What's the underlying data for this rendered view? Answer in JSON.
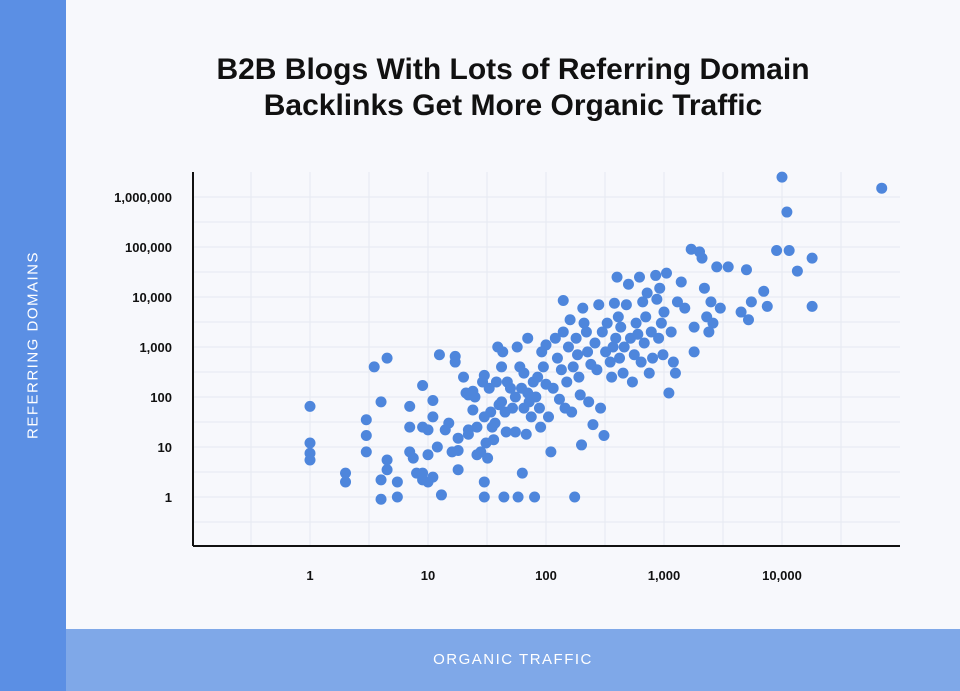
{
  "chart_data": {
    "type": "scatter",
    "title_line1": "B2B Blogs With Lots of Referring Domain",
    "title_line2": "Backlinks Get More Organic Traffic",
    "xlabel": "ORGANIC TRAFFIC",
    "ylabel": "REFERRING DOMAINS",
    "x_scale": "log",
    "y_scale": "log",
    "x_ticks": [
      1,
      10,
      100,
      1000,
      10000
    ],
    "x_tick_labels": [
      "1",
      "10",
      "100",
      "1,000",
      "10,000"
    ],
    "y_ticks": [
      1,
      10,
      100,
      1000,
      10000,
      100000,
      1000000
    ],
    "y_tick_labels": [
      "1",
      "10",
      "100",
      "1,000",
      "10,000",
      "100,000",
      "1,000,000"
    ],
    "grid": true,
    "color": "#4e86dc",
    "points": [
      [
        1,
        65
      ],
      [
        1,
        12
      ],
      [
        1,
        7.5
      ],
      [
        1,
        5.5
      ],
      [
        2,
        3
      ],
      [
        2,
        2
      ],
      [
        3,
        35
      ],
      [
        3,
        17
      ],
      [
        3,
        8
      ],
      [
        3.5,
        400
      ],
      [
        4,
        80
      ],
      [
        4,
        2.2
      ],
      [
        4,
        0.9
      ],
      [
        4.5,
        600
      ],
      [
        4.5,
        5.5
      ],
      [
        4.5,
        3.5
      ],
      [
        5.5,
        2
      ],
      [
        5.5,
        1
      ],
      [
        7,
        65
      ],
      [
        7,
        25
      ],
      [
        7,
        8
      ],
      [
        7.5,
        6
      ],
      [
        8,
        3
      ],
      [
        9,
        170
      ],
      [
        9,
        25
      ],
      [
        9,
        3
      ],
      [
        9,
        2.2
      ],
      [
        10,
        2
      ],
      [
        10,
        7
      ],
      [
        10,
        22
      ],
      [
        11,
        40
      ],
      [
        11,
        85
      ],
      [
        11,
        2.5
      ],
      [
        12,
        10
      ],
      [
        12.5,
        700
      ],
      [
        13,
        1.1
      ],
      [
        14,
        22
      ],
      [
        15,
        30
      ],
      [
        16,
        8
      ],
      [
        17,
        500
      ],
      [
        17,
        650
      ],
      [
        18,
        3.5
      ],
      [
        18,
        15
      ],
      [
        18,
        8.5
      ],
      [
        20,
        250
      ],
      [
        21,
        120
      ],
      [
        22,
        110
      ],
      [
        22,
        22
      ],
      [
        22,
        18
      ],
      [
        24,
        55
      ],
      [
        24,
        130
      ],
      [
        25,
        100
      ],
      [
        26,
        7
      ],
      [
        26,
        25
      ],
      [
        28,
        8
      ],
      [
        29,
        200
      ],
      [
        30,
        40
      ],
      [
        30,
        270
      ],
      [
        30,
        1
      ],
      [
        30,
        2
      ],
      [
        31,
        12
      ],
      [
        32,
        6
      ],
      [
        33,
        150
      ],
      [
        34,
        50
      ],
      [
        35,
        25
      ],
      [
        36,
        14
      ],
      [
        37,
        30
      ],
      [
        38,
        200
      ],
      [
        39,
        1000
      ],
      [
        40,
        70
      ],
      [
        42,
        400
      ],
      [
        42,
        80
      ],
      [
        43,
        800
      ],
      [
        44,
        1
      ],
      [
        45,
        50
      ],
      [
        46,
        20
      ],
      [
        47,
        200
      ],
      [
        50,
        150
      ],
      [
        52,
        60
      ],
      [
        55,
        20
      ],
      [
        55,
        100
      ],
      [
        57,
        1000
      ],
      [
        58,
        1
      ],
      [
        60,
        400
      ],
      [
        62,
        150
      ],
      [
        63,
        3
      ],
      [
        65,
        60
      ],
      [
        65,
        300
      ],
      [
        68,
        18
      ],
      [
        70,
        1500
      ],
      [
        70,
        120
      ],
      [
        72,
        80
      ],
      [
        75,
        40
      ],
      [
        78,
        200
      ],
      [
        80,
        1
      ],
      [
        82,
        100
      ],
      [
        85,
        250
      ],
      [
        88,
        60
      ],
      [
        90,
        25
      ],
      [
        92,
        800
      ],
      [
        95,
        400
      ],
      [
        100,
        180
      ],
      [
        100,
        1100
      ],
      [
        105,
        40
      ],
      [
        110,
        8
      ],
      [
        115,
        150
      ],
      [
        120,
        1500
      ],
      [
        125,
        600
      ],
      [
        130,
        90
      ],
      [
        135,
        350
      ],
      [
        140,
        2000
      ],
      [
        140,
        8500
      ],
      [
        145,
        60
      ],
      [
        150,
        200
      ],
      [
        155,
        1000
      ],
      [
        160,
        3500
      ],
      [
        165,
        50
      ],
      [
        170,
        400
      ],
      [
        175,
        1
      ],
      [
        180,
        1500
      ],
      [
        185,
        700
      ],
      [
        190,
        250
      ],
      [
        195,
        110
      ],
      [
        200,
        11
      ],
      [
        205,
        6000
      ],
      [
        210,
        3000
      ],
      [
        220,
        2000
      ],
      [
        225,
        800
      ],
      [
        230,
        80
      ],
      [
        240,
        450
      ],
      [
        250,
        28
      ],
      [
        260,
        1200
      ],
      [
        270,
        350
      ],
      [
        280,
        7000
      ],
      [
        290,
        60
      ],
      [
        300,
        2000
      ],
      [
        310,
        17
      ],
      [
        320,
        800
      ],
      [
        330,
        3000
      ],
      [
        350,
        500
      ],
      [
        360,
        250
      ],
      [
        370,
        1000
      ],
      [
        380,
        7500
      ],
      [
        390,
        1500
      ],
      [
        400,
        25000
      ],
      [
        410,
        4000
      ],
      [
        420,
        600
      ],
      [
        430,
        2500
      ],
      [
        450,
        300
      ],
      [
        460,
        1000
      ],
      [
        480,
        7000
      ],
      [
        500,
        18000
      ],
      [
        520,
        1500
      ],
      [
        540,
        200
      ],
      [
        560,
        700
      ],
      [
        580,
        3000
      ],
      [
        600,
        1800
      ],
      [
        620,
        25000
      ],
      [
        640,
        500
      ],
      [
        660,
        8000
      ],
      [
        680,
        1200
      ],
      [
        700,
        4000
      ],
      [
        720,
        12000
      ],
      [
        750,
        300
      ],
      [
        780,
        2000
      ],
      [
        800,
        600
      ],
      [
        850,
        27000
      ],
      [
        870,
        9000
      ],
      [
        900,
        1500
      ],
      [
        920,
        15000
      ],
      [
        950,
        3000
      ],
      [
        980,
        700
      ],
      [
        1000,
        5000
      ],
      [
        1050,
        30000
      ],
      [
        1100,
        120
      ],
      [
        1150,
        2000
      ],
      [
        1200,
        500
      ],
      [
        1250,
        300
      ],
      [
        1300,
        8000
      ],
      [
        1400,
        20000
      ],
      [
        1500,
        6000
      ],
      [
        1700,
        90000
      ],
      [
        1800,
        2500
      ],
      [
        1800,
        800
      ],
      [
        2000,
        80000
      ],
      [
        2100,
        60000
      ],
      [
        2200,
        15000
      ],
      [
        2300,
        4000
      ],
      [
        2400,
        2000
      ],
      [
        2500,
        8000
      ],
      [
        2600,
        3000
      ],
      [
        2800,
        40000
      ],
      [
        3000,
        6000
      ],
      [
        3500,
        40000
      ],
      [
        4500,
        5000
      ],
      [
        5000,
        35000
      ],
      [
        5200,
        3500
      ],
      [
        5500,
        8000
      ],
      [
        7000,
        13000
      ],
      [
        7500,
        6500
      ],
      [
        9000,
        85000
      ],
      [
        10000,
        2500000
      ],
      [
        11000,
        500000
      ],
      [
        11500,
        85000
      ],
      [
        13500,
        33000
      ],
      [
        18000,
        60000
      ],
      [
        18000,
        6500
      ],
      [
        70000,
        1500000
      ]
    ]
  }
}
